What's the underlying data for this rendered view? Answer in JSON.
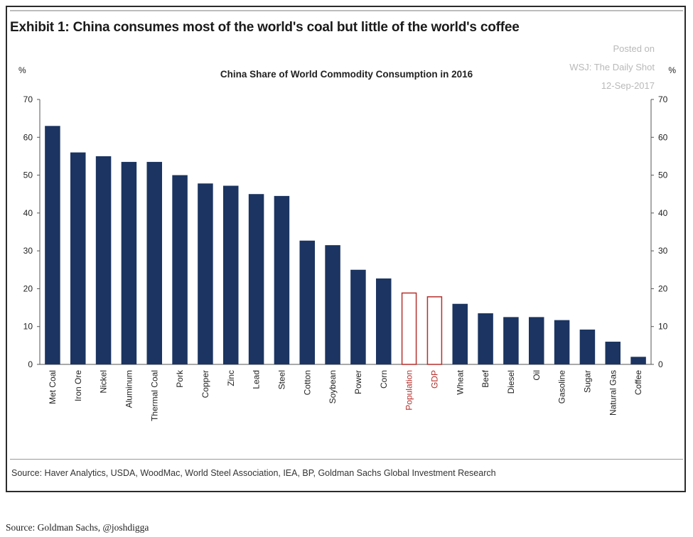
{
  "exhibit_title": "Exhibit 1: China consumes most of the world's coal but little of the world's coffee",
  "watermark": [
    "Posted on",
    "WSJ: The Daily Shot",
    "12-Sep-2017"
  ],
  "source_note": "Source: Haver Analytics, USDA, WoodMac, World Steel Association, IEA, BP, Goldman Sachs Global Investment Research",
  "caption": "Source: Goldman Sachs, @joshdigga",
  "colors": {
    "bar": "#1b3461",
    "highlight_outline": "#b5302c",
    "axis": "#555555"
  },
  "chart_data": {
    "type": "bar",
    "title": "China Share of World Commodity Consumption in 2016",
    "ylabel_left": "%",
    "ylabel_right": "%",
    "ylim": [
      0,
      70
    ],
    "yticks": [
      0,
      10,
      20,
      30,
      40,
      50,
      60,
      70
    ],
    "categories": [
      "Met Coal",
      "Iron Ore",
      "Nickel",
      "Aluminum",
      "Thermal Coal",
      "Pork",
      "Copper",
      "Zinc",
      "Lead",
      "Steel",
      "Cotton",
      "Soybean",
      "Power",
      "Corn",
      "Population",
      "GDP",
      "Wheat",
      "Beef",
      "Diesel",
      "Oil",
      "Gasoline",
      "Sugar",
      "Natural Gas",
      "Coffee"
    ],
    "values": [
      63,
      56,
      55,
      53.5,
      53.5,
      50,
      47.8,
      47.2,
      45,
      44.5,
      32.7,
      31.5,
      25,
      22.7,
      19,
      18,
      16,
      13.5,
      12.5,
      12.5,
      11.7,
      9.2,
      6,
      2
    ],
    "highlighted": [
      "Population",
      "GDP"
    ],
    "grid": false
  }
}
